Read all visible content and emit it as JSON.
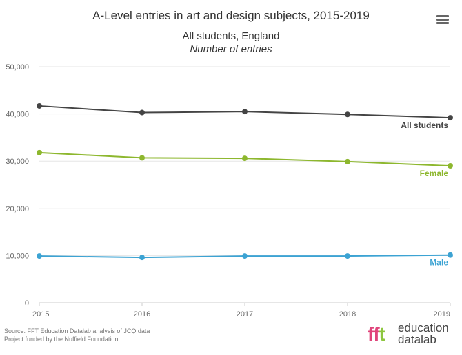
{
  "title": "A-Level entries in art and design subjects, 2015-2019",
  "subtitle": "All students, England",
  "subtitle2": "Number of entries",
  "credits": {
    "line1": "Source: FFT Education Datalab analysis of JCQ data",
    "line2": "Project funded by the Nuffield Foundation"
  },
  "logo": {
    "mark_f1": "f",
    "mark_f2": "f",
    "mark_t": "t",
    "text1": "education",
    "text2": "datalab"
  },
  "menu_icon": "hamburger-menu-icon",
  "colors": {
    "all": "#444444",
    "female": "#8db72e",
    "male": "#3ca3d3",
    "grid": "#e6e6e6",
    "axis": "#cccccc"
  },
  "chart_data": {
    "type": "line",
    "x": [
      "2015",
      "2016",
      "2017",
      "2018",
      "2019"
    ],
    "ylim": [
      0,
      50000
    ],
    "yticks": [
      "0",
      "10,000",
      "20,000",
      "30,000",
      "40,000",
      "50,000"
    ],
    "grid": true,
    "series": [
      {
        "name": "All students",
        "values": [
          41700,
          40300,
          40500,
          39900,
          39200
        ]
      },
      {
        "name": "Female",
        "values": [
          31800,
          30700,
          30600,
          29900,
          29000
        ]
      },
      {
        "name": "Male",
        "values": [
          9900,
          9600,
          9900,
          9900,
          10100
        ]
      }
    ]
  }
}
